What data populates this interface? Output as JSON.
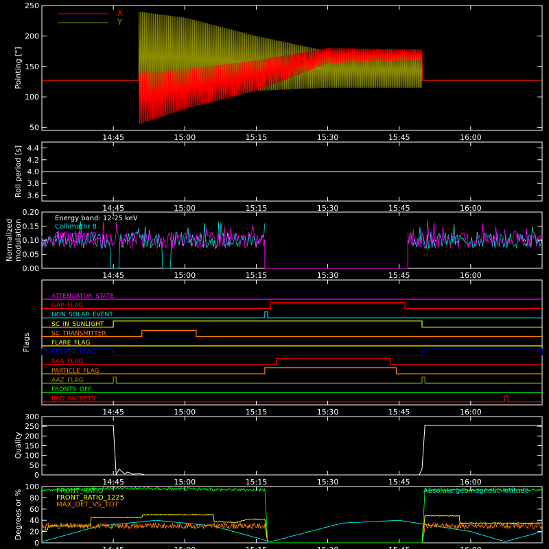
{
  "chart_data": [
    {
      "type": "line",
      "ylabel": "Pointing [\"]",
      "ylim": [
        45,
        250
      ],
      "yticks": [
        50,
        100,
        150,
        200,
        250
      ],
      "legend_placement": "top-left",
      "series": [
        {
          "name": "X",
          "color": "#ff0000",
          "baseline": 127,
          "envelope": [
            [
              14.83,
              127,
              127
            ],
            [
              14.84,
              55,
              140
            ],
            [
              15.0,
              80,
              145
            ],
            [
              15.25,
              110,
              160
            ],
            [
              15.5,
              155,
              180
            ],
            [
              15.83,
              160,
              178
            ],
            [
              15.84,
              127,
              127
            ],
            [
              16.25,
              127,
              127
            ]
          ]
        },
        {
          "name": "Y",
          "color": "#8c8c00",
          "baseline": 127,
          "envelope": [
            [
              14.83,
              127,
              127
            ],
            [
              14.84,
              95,
              240
            ],
            [
              15.0,
              100,
              230
            ],
            [
              15.25,
              110,
              200
            ],
            [
              15.5,
              115,
              175
            ],
            [
              15.83,
              115,
              172
            ],
            [
              15.84,
              127,
              127
            ],
            [
              16.25,
              127,
              127
            ]
          ]
        }
      ]
    },
    {
      "type": "line",
      "ylabel": "Roll period [s]",
      "ylim": [
        3.5,
        4.5
      ],
      "yticks": [
        "3.6",
        "3.8",
        "4.0",
        "4.2",
        "4.4"
      ],
      "series": [
        {
          "color": "#ffffff",
          "points": [
            [
              14.5,
              4.0
            ],
            [
              16.25,
              4.0
            ]
          ]
        }
      ]
    },
    {
      "type": "line",
      "ylabel_lines": [
        "Normalized",
        "modulation"
      ],
      "ylim": [
        0,
        0.2
      ],
      "yticks": [
        "0.00",
        "0.05",
        "0.10",
        "0.15",
        "0.20"
      ],
      "annotations": [
        {
          "text": "Energy band: 12-25 keV",
          "color": "#ffffff"
        }
      ],
      "series": [
        {
          "name": "Collimator 8",
          "color": "#00e5e5",
          "segments": [
            [
              14.5,
              15.28,
              0.1,
              0.03
            ],
            [
              15.78,
              16.25,
              0.1,
              0.03
            ]
          ],
          "dips": [
            [
              14.74,
              14.77
            ],
            [
              14.92,
              14.95
            ]
          ]
        },
        {
          "name": "Collimator 9",
          "color": "#ff00ff",
          "segments": [
            [
              14.5,
              15.28,
              0.1,
              0.03
            ],
            [
              15.78,
              16.25,
              0.1,
              0.03
            ]
          ],
          "zero_span": [
            15.28,
            15.78
          ]
        }
      ]
    },
    {
      "type": "step",
      "ylabel": "Flags",
      "rows": [
        {
          "label": "ATTENUATOR_STATE",
          "color": "#ff00ff",
          "on": []
        },
        {
          "label": "GAP_FLAG",
          "color": "#ff0000",
          "on": [
            [
              15.3,
              15.77
            ]
          ]
        },
        {
          "label": "NON_SOLAR_EVENT",
          "color": "#00e5e5",
          "on": [
            [
              15.28,
              15.29
            ]
          ]
        },
        {
          "label": "SC_IN_SUNLIGHT",
          "color": "#ffff00",
          "on": [
            [
              14.75,
              15.83
            ]
          ]
        },
        {
          "label": "SC_TRANSMITTER",
          "color": "#ff8000",
          "on": [
            [
              14.85,
              15.04
            ]
          ]
        },
        {
          "label": "FLARE_FLAG",
          "color": "#ffff00",
          "on": []
        },
        {
          "label": "ECLIPSE_FLAG",
          "color": "#0000ff",
          "on": [
            [
              14.5,
              14.75
            ],
            [
              15.83,
              16.25
            ]
          ]
        },
        {
          "label": "SAA_FLAG",
          "color": "#ff0000",
          "on": [
            [
              15.32,
              15.72
            ]
          ]
        },
        {
          "label": "PARTICLE_FLAG",
          "color": "#ff8000",
          "on": [
            [
              15.28,
              15.74
            ]
          ]
        },
        {
          "label": "AAZ_FLAG",
          "color": "#8c8c00",
          "on": [
            [
              14.75,
              14.76
            ],
            [
              15.83,
              15.84
            ]
          ]
        },
        {
          "label": "FRONTS_OFF",
          "color": "#00ff00",
          "on": []
        },
        {
          "label": "BAD_PACKETS",
          "color": "#ff0000",
          "on": [
            [
              16.12,
              16.13
            ]
          ]
        }
      ]
    },
    {
      "type": "line",
      "ylabel": "Quality",
      "ylim": [
        0,
        300
      ],
      "yticks": [
        0,
        50,
        100,
        150,
        200,
        250,
        300
      ],
      "series": [
        {
          "color": "#ffffff",
          "points": [
            [
              14.5,
              255
            ],
            [
              14.75,
              255
            ],
            [
              14.76,
              0
            ],
            [
              14.77,
              30
            ],
            [
              14.79,
              5
            ],
            [
              14.8,
              15
            ],
            [
              14.82,
              3
            ],
            [
              14.84,
              8
            ],
            [
              14.86,
              0
            ],
            [
              15.82,
              0
            ],
            [
              15.83,
              30
            ],
            [
              15.84,
              255
            ],
            [
              16.25,
              255
            ]
          ]
        }
      ]
    },
    {
      "type": "line",
      "ylabel": "Degrees or %",
      "ylim": [
        0,
        100
      ],
      "yticks": [
        0,
        20,
        40,
        60,
        80,
        100
      ],
      "series": [
        {
          "name": "FRONT_RATIO",
          "color": "#00ff00",
          "points": [
            [
              14.5,
              93
            ],
            [
              14.7,
              96
            ],
            [
              14.75,
              97
            ],
            [
              15.28,
              94
            ],
            [
              15.29,
              0
            ],
            [
              15.83,
              0
            ],
            [
              15.84,
              94
            ],
            [
              16.25,
              94
            ]
          ]
        },
        {
          "name": "FRONT_RATIO_1225",
          "color": "#ffff00",
          "points": [
            [
              14.5,
              23
            ],
            [
              14.52,
              23
            ],
            [
              14.52,
              30
            ],
            [
              14.67,
              30
            ],
            [
              14.67,
              45
            ],
            [
              14.85,
              45
            ],
            [
              14.85,
              50
            ],
            [
              15.1,
              50
            ],
            [
              15.1,
              38
            ],
            [
              15.18,
              36
            ],
            [
              15.22,
              42
            ],
            [
              15.28,
              42
            ],
            [
              15.29,
              0
            ],
            [
              15.83,
              0
            ],
            [
              15.84,
              48
            ],
            [
              15.96,
              48
            ],
            [
              15.96,
              35
            ],
            [
              16.25,
              35
            ]
          ]
        },
        {
          "name": "MAX_DET_VS_TOT",
          "color": "#ff8000",
          "points": [
            [
              14.5,
              30
            ],
            [
              15.28,
              30
            ],
            [
              15.29,
              0
            ],
            [
              15.83,
              0
            ],
            [
              15.84,
              30
            ],
            [
              16.25,
              30
            ]
          ]
        },
        {
          "name": "Absolute geomagnetic latitude",
          "color": "#00e5e5",
          "points": [
            [
              14.5,
              2
            ],
            [
              14.7,
              30
            ],
            [
              14.9,
              40
            ],
            [
              15.1,
              30
            ],
            [
              15.3,
              2
            ],
            [
              15.55,
              35
            ],
            [
              15.75,
              40
            ],
            [
              16.0,
              20
            ],
            [
              16.12,
              2
            ],
            [
              16.25,
              20
            ]
          ]
        }
      ]
    }
  ],
  "xaxis": {
    "range": [
      14.5,
      16.25
    ],
    "ticks": [
      {
        "v": 14.75,
        "label": "14:45"
      },
      {
        "v": 15.0,
        "label": "15:00"
      },
      {
        "v": 15.25,
        "label": "15:15"
      },
      {
        "v": 15.5,
        "label": "15:30"
      },
      {
        "v": 15.75,
        "label": "15:45"
      },
      {
        "v": 16.0,
        "label": "16:00"
      }
    ]
  }
}
